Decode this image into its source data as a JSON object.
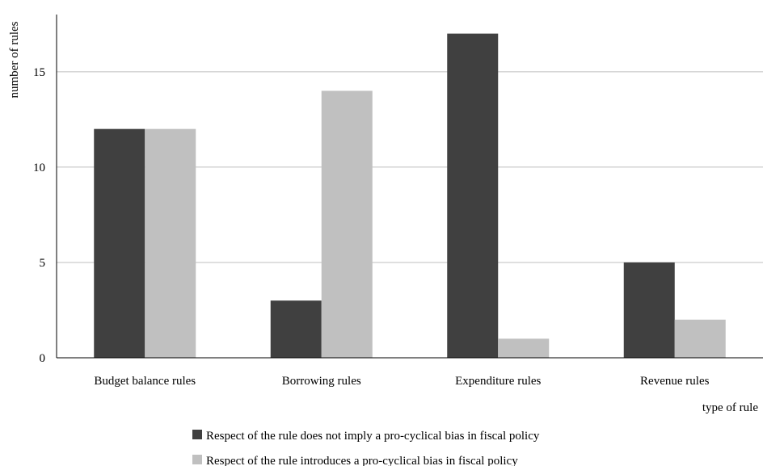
{
  "chart_data": {
    "type": "bar",
    "title": "",
    "xlabel": "type of rule",
    "ylabel": "number of rules",
    "categories": [
      "Budget balance rules",
      "Borrowing rules",
      "Expenditure rules",
      "Revenue rules"
    ],
    "series": [
      {
        "name": "Respect of the rule does not imply a pro-cyclical bias in fiscal policy",
        "values": [
          12,
          3,
          17,
          5
        ],
        "color": "#404040"
      },
      {
        "name": "Respect of the rule introduces a pro-cyclical bias in fiscal policy",
        "values": [
          12,
          14,
          1,
          2
        ],
        "color": "#c0c0c0"
      }
    ],
    "ylim": [
      0,
      18
    ],
    "yticks": [
      0,
      5,
      10,
      15
    ],
    "grid": true,
    "legend_position": "bottom"
  }
}
